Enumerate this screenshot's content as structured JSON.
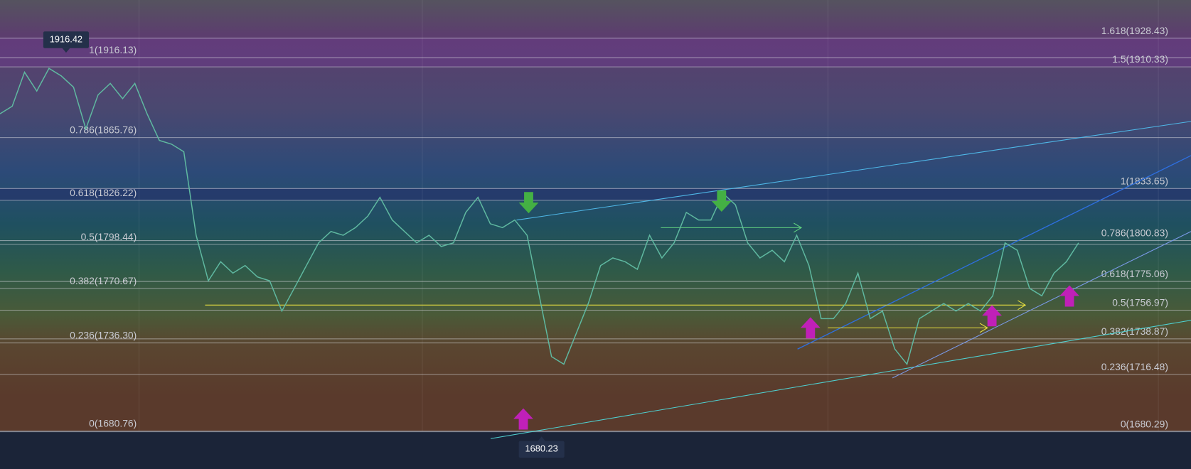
{
  "fib_left": {
    "levels": [
      {
        "label": "0(1680.76)",
        "price": 1680.76
      },
      {
        "label": "0.236(1736.30)",
        "price": 1736.3
      },
      {
        "label": "0.382(1770.67)",
        "price": 1770.67
      },
      {
        "label": "0.5(1798.44)",
        "price": 1798.44
      },
      {
        "label": "0.618(1826.22)",
        "price": 1826.22
      },
      {
        "label": "0.786(1865.76)",
        "price": 1865.76
      },
      {
        "label": "1(1916.13)",
        "price": 1916.13
      }
    ]
  },
  "fib_right": {
    "levels": [
      {
        "label": "0(1680.29)",
        "price": 1680.29
      },
      {
        "label": "0.236(1716.48)",
        "price": 1716.48
      },
      {
        "label": "0.382(1738.87)",
        "price": 1738.87
      },
      {
        "label": "0.5(1756.97)",
        "price": 1756.97
      },
      {
        "label": "0.618(1775.06)",
        "price": 1775.06
      },
      {
        "label": "0.786(1800.83)",
        "price": 1800.83
      },
      {
        "label": "1(1833.65)",
        "price": 1833.65
      },
      {
        "label": "1.5(1910.33)",
        "price": 1910.33
      },
      {
        "label": "1.618(1928.43)",
        "price": 1928.43
      }
    ]
  },
  "annotations": {
    "high": 1916.42,
    "low": 1680.23
  },
  "price_series": {
    "color": "#5fb8a0",
    "values": [
      1880.8,
      1885.5,
      1907.0,
      1895.1,
      1909.4,
      1904.6,
      1897.5,
      1871.2,
      1892.7,
      1899.9,
      1890.3,
      1899.9,
      1880.8,
      1864.0,
      1861.6,
      1856.8,
      1804.2,
      1775.5,
      1787.5,
      1780.3,
      1785.1,
      1777.9,
      1775.5,
      1756.4,
      1770.7,
      1785.1,
      1799.4,
      1806.6,
      1804.2,
      1809.0,
      1816.2,
      1828.1,
      1813.8,
      1806.6,
      1799.4,
      1804.2,
      1797.1,
      1799.4,
      1818.6,
      1828.1,
      1811.4,
      1809.0,
      1813.8,
      1804.2,
      1766.0,
      1727.7,
      1722.9,
      1742.0,
      1761.2,
      1785.1,
      1789.9,
      1787.5,
      1782.7,
      1804.2,
      1789.9,
      1799.4,
      1818.6,
      1813.8,
      1813.8,
      1830.5,
      1823.4,
      1799.4,
      1789.9,
      1794.7,
      1787.5,
      1804.2,
      1785.1,
      1751.6,
      1751.6,
      1761.2,
      1780.3,
      1751.6,
      1756.4,
      1732.5,
      1722.9,
      1751.6,
      1756.4,
      1761.2,
      1756.4,
      1761.2,
      1756.4,
      1766.0,
      1799.4,
      1794.7,
      1770.7,
      1766.0,
      1780.3,
      1787.5,
      1799.4
    ]
  }
}
